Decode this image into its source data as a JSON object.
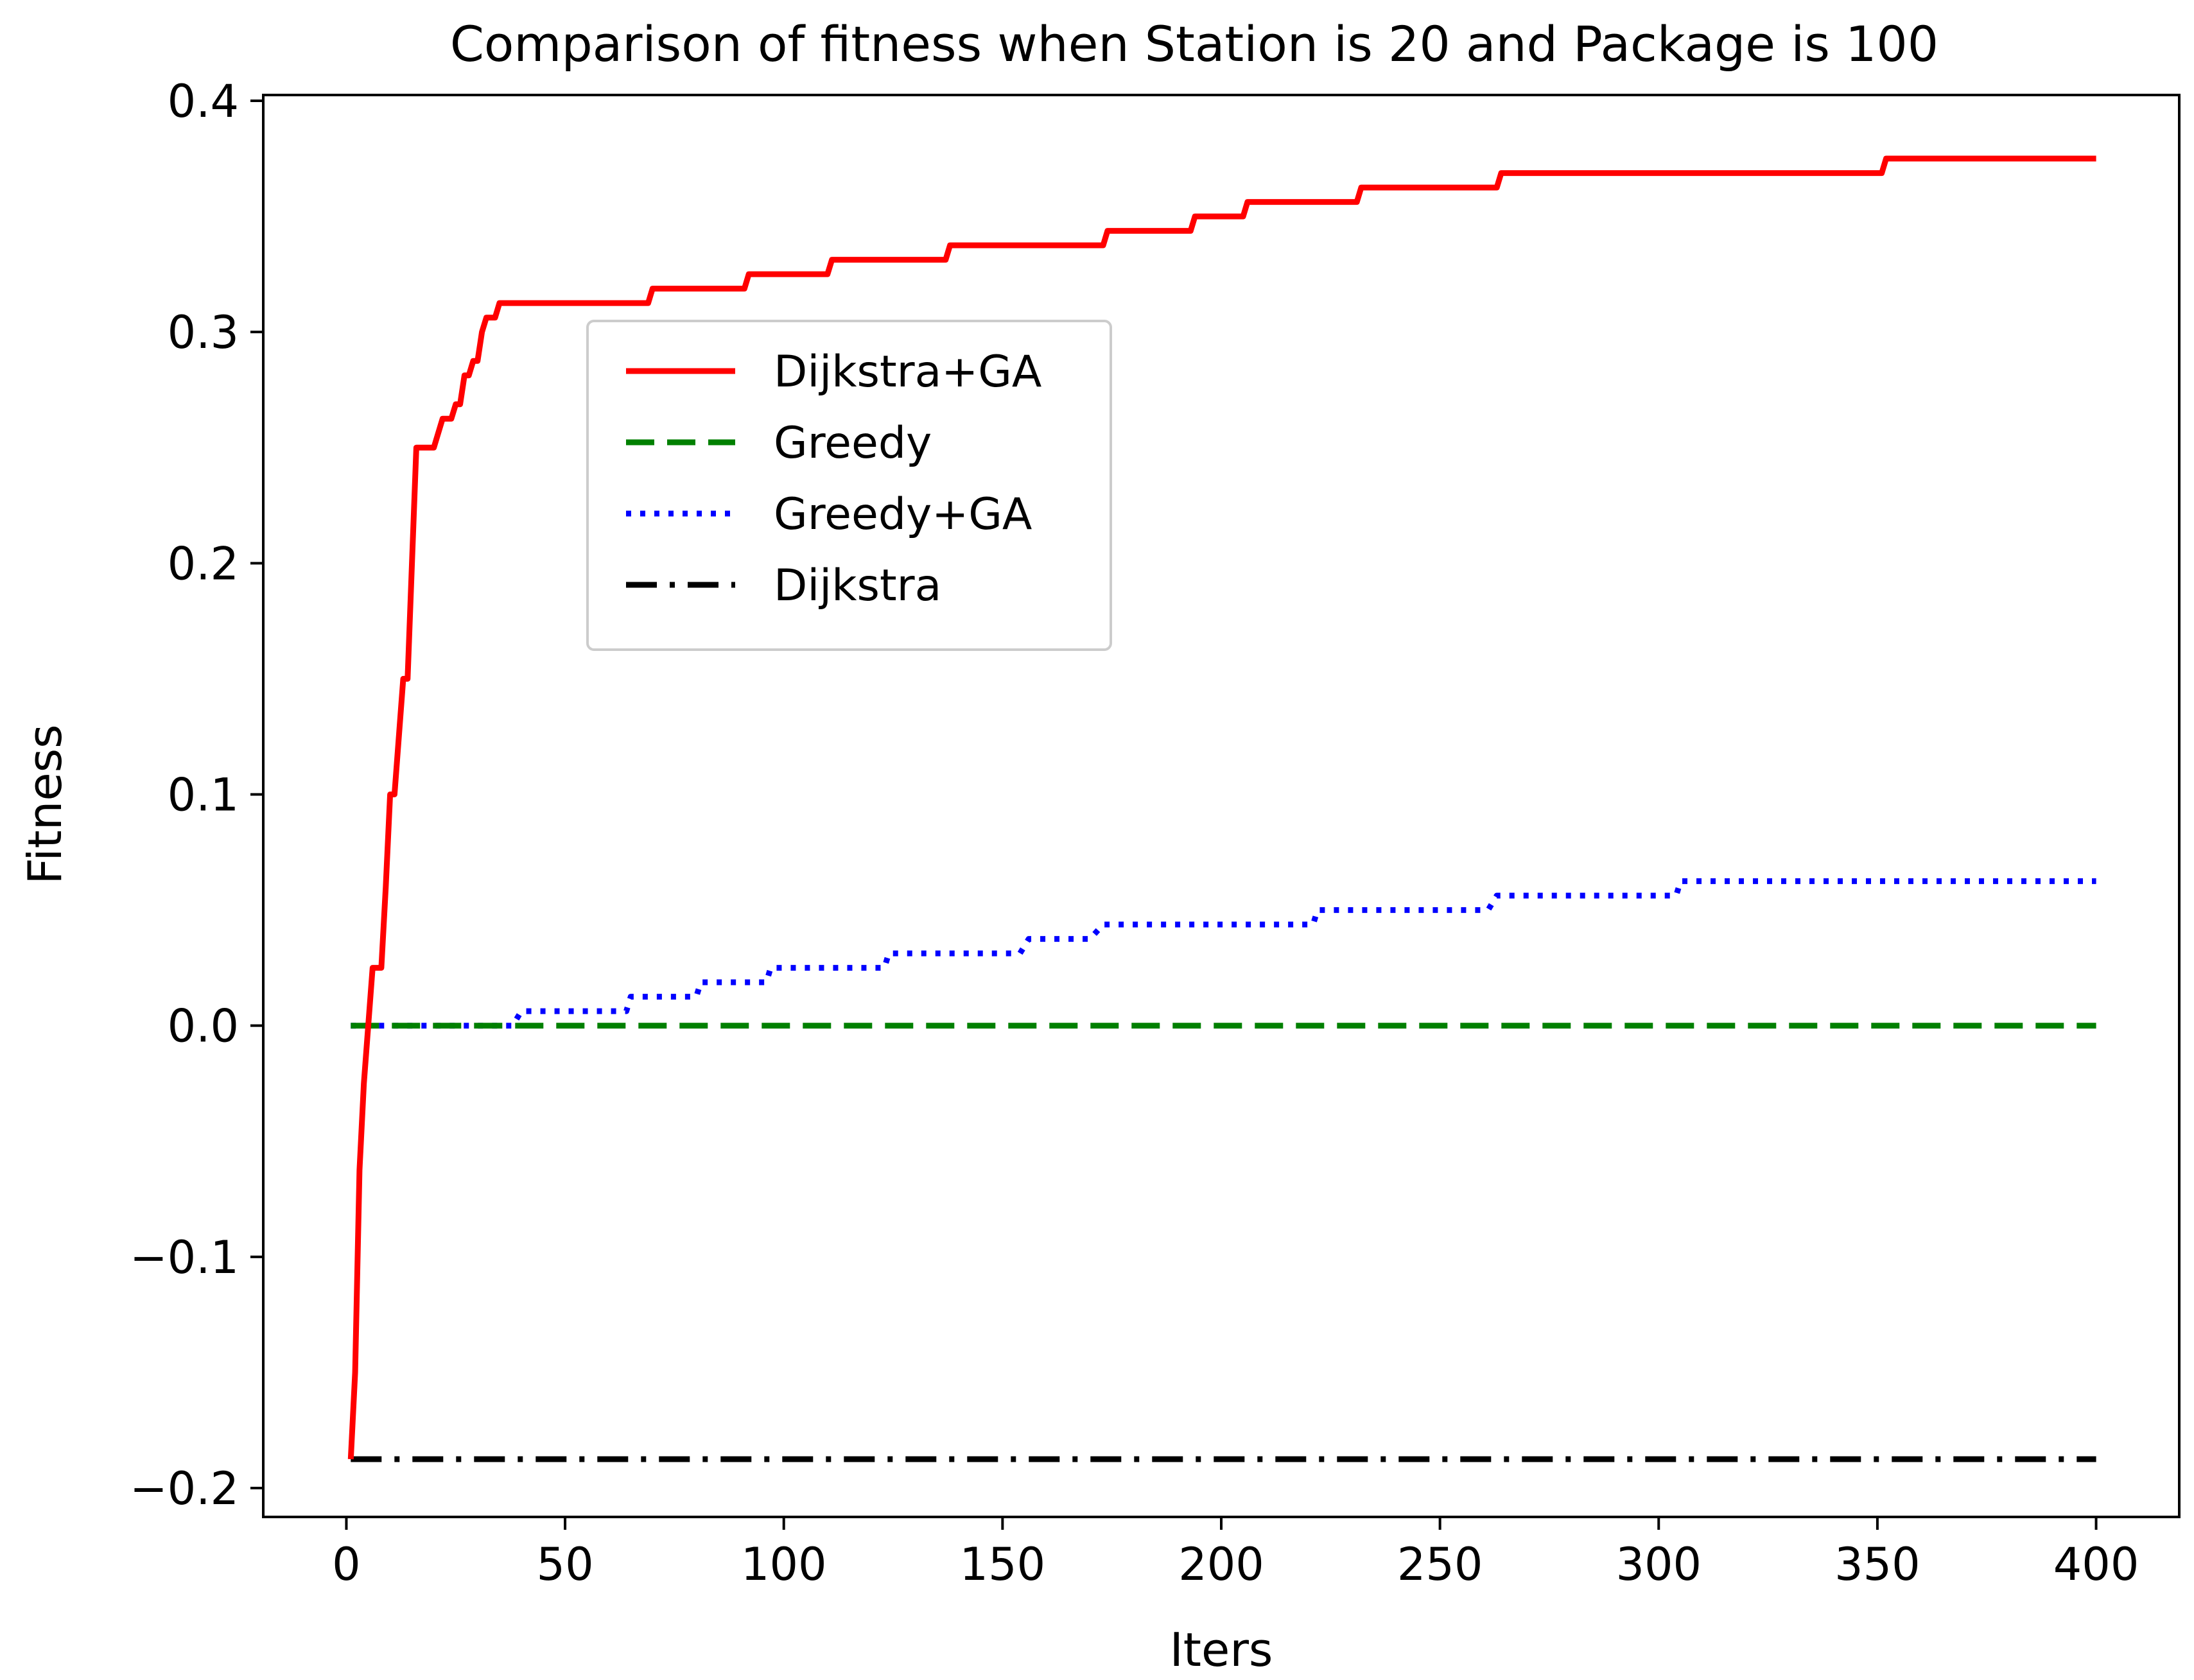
{
  "chart_data": {
    "type": "line",
    "title": "Comparison of fitness when Station is 20 and Package is 100",
    "xlabel": "Iters",
    "ylabel": "Fitness",
    "xlim": [
      -19,
      419
    ],
    "ylim": [
      -0.2125,
      0.4025
    ],
    "xticks": [
      0,
      50,
      100,
      150,
      200,
      250,
      300,
      350,
      400
    ],
    "xtick_labels": [
      "0",
      "50",
      "100",
      "150",
      "200",
      "250",
      "300",
      "350",
      "400"
    ],
    "yticks": [
      -0.2,
      -0.1,
      0.0,
      0.1,
      0.2,
      0.3,
      0.4
    ],
    "ytick_labels": [
      "−0.2",
      "−0.1",
      "0.0",
      "0.1",
      "0.2",
      "0.3",
      "0.4"
    ],
    "grid": false,
    "legend_position": "upper-center",
    "series": [
      {
        "name": "Dijkstra+GA",
        "color": "#ff0000",
        "style": "solid",
        "points": [
          [
            1,
            -0.1875
          ],
          [
            2,
            -0.15
          ],
          [
            3,
            -0.0625
          ],
          [
            4,
            -0.025
          ],
          [
            5,
            0.0
          ],
          [
            6,
            0.025
          ],
          [
            8,
            0.025
          ],
          [
            9,
            0.06
          ],
          [
            10,
            0.1
          ],
          [
            11,
            0.1
          ],
          [
            13,
            0.15
          ],
          [
            14,
            0.15
          ],
          [
            16,
            0.25
          ],
          [
            20,
            0.25
          ],
          [
            22,
            0.2625
          ],
          [
            24,
            0.2625
          ],
          [
            25,
            0.26875
          ],
          [
            26,
            0.26875
          ],
          [
            27,
            0.28125
          ],
          [
            28,
            0.28125
          ],
          [
            29,
            0.2875
          ],
          [
            30,
            0.2875
          ],
          [
            31,
            0.3
          ],
          [
            32,
            0.30625
          ],
          [
            34,
            0.30625
          ],
          [
            35,
            0.3125
          ],
          [
            69,
            0.3125
          ],
          [
            70,
            0.31875
          ],
          [
            91,
            0.31875
          ],
          [
            92,
            0.325
          ],
          [
            110,
            0.325
          ],
          [
            111,
            0.33125
          ],
          [
            137,
            0.33125
          ],
          [
            138,
            0.3375
          ],
          [
            173,
            0.3375
          ],
          [
            174,
            0.34375
          ],
          [
            193,
            0.34375
          ],
          [
            194,
            0.35
          ],
          [
            205,
            0.35
          ],
          [
            206,
            0.35625
          ],
          [
            231,
            0.35625
          ],
          [
            232,
            0.3625
          ],
          [
            263,
            0.3625
          ],
          [
            264,
            0.36875
          ],
          [
            351,
            0.36875
          ],
          [
            352,
            0.375
          ],
          [
            400,
            0.375
          ]
        ]
      },
      {
        "name": "Greedy",
        "color": "#008000",
        "style": "dashed",
        "points": [
          [
            1,
            0.0
          ],
          [
            400,
            0.0
          ]
        ]
      },
      {
        "name": "Greedy+GA",
        "color": "#0000ff",
        "style": "dotted",
        "points": [
          [
            1,
            0.0
          ],
          [
            38,
            0.0
          ],
          [
            40,
            0.00625
          ],
          [
            64,
            0.00625
          ],
          [
            65,
            0.0125
          ],
          [
            80,
            0.0125
          ],
          [
            81,
            0.01875
          ],
          [
            96,
            0.01875
          ],
          [
            97,
            0.025
          ],
          [
            123,
            0.025
          ],
          [
            124,
            0.03125
          ],
          [
            154,
            0.03125
          ],
          [
            156,
            0.0375
          ],
          [
            170,
            0.0375
          ],
          [
            173,
            0.04375
          ],
          [
            221,
            0.04375
          ],
          [
            222,
            0.05
          ],
          [
            261,
            0.05
          ],
          [
            263,
            0.05625
          ],
          [
            304,
            0.05625
          ],
          [
            305,
            0.0625
          ],
          [
            400,
            0.0625
          ]
        ]
      },
      {
        "name": "Dijkstra",
        "color": "#000000",
        "style": "dashdot",
        "points": [
          [
            1,
            -0.1875
          ],
          [
            400,
            -0.1875
          ]
        ]
      }
    ]
  }
}
